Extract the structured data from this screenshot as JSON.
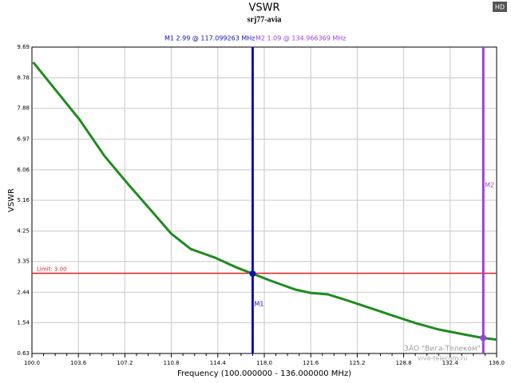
{
  "chart_data": {
    "type": "line",
    "title": "VSWR",
    "subtitle": "srj77-avia",
    "badge": "HD",
    "x_label": "Frequency (100.000000 - 136.000000 MHz)",
    "y_label": "VSWR",
    "x": [
      100.1,
      101.2,
      103.7,
      105.6,
      107.4,
      109.3,
      110.8,
      112.3,
      114.2,
      115.8,
      117.1,
      118.5,
      120.4,
      121.6,
      122.9,
      124.1,
      126.0,
      127.8,
      129.7,
      131.5,
      133.4,
      134.9,
      136.0
    ],
    "series": [
      {
        "name": "VSWR",
        "color": "#1e8c1e",
        "values": [
          9.24,
          8.72,
          7.54,
          6.48,
          5.66,
          4.83,
          4.17,
          3.72,
          3.46,
          3.18,
          2.99,
          2.78,
          2.52,
          2.42,
          2.38,
          2.24,
          2.0,
          1.77,
          1.53,
          1.34,
          1.2,
          1.09,
          1.04
        ]
      }
    ],
    "xlim": [
      100,
      136
    ],
    "ylim": [
      0.63,
      9.69
    ],
    "xticks": [
      {
        "value": 100,
        "label": "100.0"
      },
      103.6,
      107.2,
      110.8,
      114.4,
      {
        "value": 118,
        "label": "118.0"
      },
      121.6,
      125.2,
      128.8,
      132.4,
      {
        "value": 136,
        "label": "136.0"
      }
    ],
    "yticks": [
      0.63,
      1.54,
      2.44,
      3.35,
      4.25,
      5.16,
      6.06,
      6.97,
      7.88,
      8.78,
      9.69
    ],
    "grid": true,
    "limit": {
      "value": 3.0,
      "label": "Limit: 3.00",
      "color": "#e02020"
    },
    "markers": [
      {
        "name": "M1",
        "readout": "M1  2.99 @ 117.099263 MHz",
        "x": 117.099263,
        "y": 2.99,
        "color": "#1010b0"
      },
      {
        "name": "M2",
        "readout": "M2  1.09 @ 134.966369 MHz",
        "x": 134.966369,
        "y": 1.09,
        "color": "#9b40d8"
      }
    ],
    "watermark": [
      "ЗАО \"Вига-Телеком\"",
      "viva-telecom.ru"
    ]
  }
}
